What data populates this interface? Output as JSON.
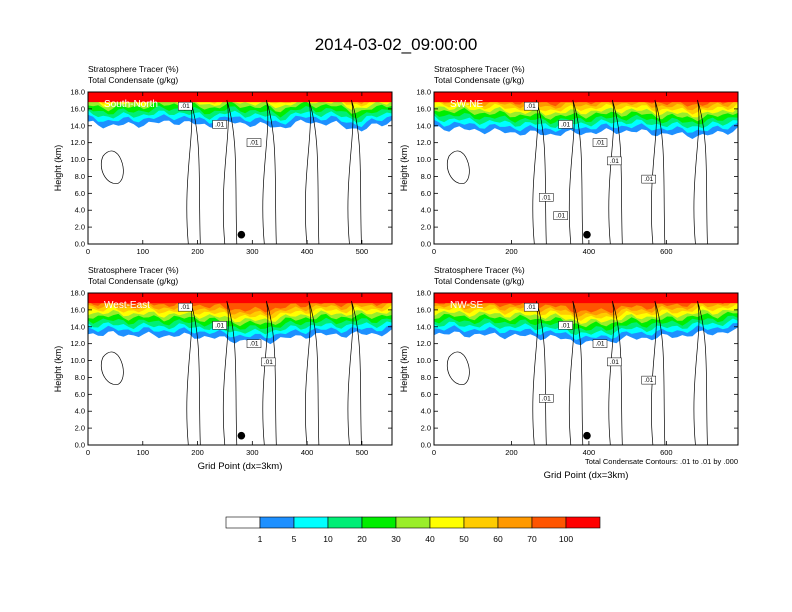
{
  "title": "2014-03-02_09:00:00",
  "colors": {
    "fill_levels": [
      "#ffffff",
      "#1e90ff",
      "#00ffff",
      "#00ee76",
      "#00ee00",
      "#9aee2a",
      "#ffff00",
      "#ffcc00",
      "#ff9900",
      "#ff5500",
      "#ff0000"
    ],
    "contour": "#000000"
  },
  "colorbar": {
    "labels": [
      "1",
      "5",
      "10",
      "20",
      "30",
      "40",
      "50",
      "60",
      "70",
      "100"
    ]
  },
  "contour_note": "Total Condensate Contours: .01 to .01 by .000",
  "chart_data": [
    {
      "type": "heatmap",
      "name": "South-North",
      "subtitle_1": "Stratosphere Tracer   (%)",
      "subtitle_2": "Total Condensate   (g/kg)",
      "ylabel": "Height (km)",
      "xlabel": "",
      "xlim": [
        0,
        555
      ],
      "ylim": [
        0,
        18
      ],
      "xticks": [
        "0",
        "100",
        "200",
        "300",
        "400",
        "500"
      ],
      "xtick_values": [
        0,
        100,
        200,
        300,
        400,
        500
      ],
      "yticks": [
        "0.0",
        "2.0",
        "4.0",
        "6.0",
        "8.0",
        "10.0",
        "12.0",
        "14.0",
        "16.0",
        "18.0"
      ],
      "marker_x": 280,
      "marker_y": 1.1,
      "contour_labels": [
        ".01",
        ".01",
        ".01"
      ],
      "profile_bottom": [
        [
          0,
          14.3
        ],
        [
          40,
          14.0
        ],
        [
          100,
          14.2
        ],
        [
          160,
          14.5
        ],
        [
          220,
          14.0
        ],
        [
          260,
          14.4
        ],
        [
          300,
          14.2
        ],
        [
          350,
          13.8
        ],
        [
          400,
          14.5
        ],
        [
          450,
          14.2
        ],
        [
          500,
          13.5
        ],
        [
          555,
          14.6
        ]
      ]
    },
    {
      "type": "heatmap",
      "name": "SW-NE",
      "subtitle_1": "Stratosphere Tracer   (%)",
      "subtitle_2": "Total Condensate   (g/kg)",
      "ylabel": "Height (km)",
      "xlabel": "",
      "xlim": [
        0,
        785
      ],
      "ylim": [
        0,
        18
      ],
      "xticks": [
        "0",
        "200",
        "400",
        "600"
      ],
      "xtick_values": [
        0,
        200,
        400,
        600
      ],
      "yticks": [
        "0.0",
        "2.0",
        "4.0",
        "6.0",
        "8.0",
        "10.0",
        "12.0",
        "14.0",
        "16.0",
        "18.0"
      ],
      "marker_x": 395,
      "marker_y": 1.1,
      "contour_labels": [
        ".01",
        ".01",
        ".01",
        ".01",
        ".01",
        ".01",
        ".01"
      ],
      "profile_bottom": [
        [
          0,
          13.8
        ],
        [
          100,
          13.5
        ],
        [
          200,
          13.2
        ],
        [
          300,
          13.0
        ],
        [
          400,
          13.2
        ],
        [
          500,
          13.4
        ],
        [
          600,
          13.0
        ],
        [
          700,
          12.8
        ],
        [
          785,
          13.6
        ]
      ]
    },
    {
      "type": "heatmap",
      "name": "West-East",
      "subtitle_1": "Stratosphere Tracer   (%)",
      "subtitle_2": "Total Condensate   (g/kg)",
      "ylabel": "Height (km)",
      "xlabel": "Grid Point (dx=3km)",
      "xlim": [
        0,
        555
      ],
      "ylim": [
        0,
        18
      ],
      "xticks": [
        "0",
        "100",
        "200",
        "300",
        "400",
        "500"
      ],
      "xtick_values": [
        0,
        100,
        200,
        300,
        400,
        500
      ],
      "yticks": [
        "0.0",
        "2.0",
        "4.0",
        "6.0",
        "8.0",
        "10.0",
        "12.0",
        "14.0",
        "16.0",
        "18.0"
      ],
      "marker_x": 280,
      "marker_y": 1.1,
      "contour_labels": [
        ".01",
        ".01",
        ".01",
        ".01"
      ],
      "profile_bottom": [
        [
          0,
          13.2
        ],
        [
          100,
          13.0
        ],
        [
          200,
          12.9
        ],
        [
          300,
          12.2
        ],
        [
          350,
          12.5
        ],
        [
          400,
          13.0
        ],
        [
          500,
          13.1
        ],
        [
          555,
          13.3
        ]
      ]
    },
    {
      "type": "heatmap",
      "name": "NW-SE",
      "subtitle_1": "Stratosphere Tracer   (%)",
      "subtitle_2": "Total Condensate   (g/kg)",
      "ylabel": "Height (km)",
      "xlabel": "Grid Point (dx=3km)",
      "xlim": [
        0,
        785
      ],
      "ylim": [
        0,
        18
      ],
      "xticks": [
        "0",
        "200",
        "400",
        "600"
      ],
      "xtick_values": [
        0,
        200,
        400,
        600
      ],
      "yticks": [
        "0.0",
        "2.0",
        "4.0",
        "6.0",
        "8.0",
        "10.0",
        "12.0",
        "14.0",
        "16.0",
        "18.0"
      ],
      "marker_x": 395,
      "marker_y": 1.1,
      "contour_labels": [
        ".01",
        ".01",
        ".01",
        ".01",
        ".01",
        ".01"
      ],
      "profile_bottom": [
        [
          0,
          13.2
        ],
        [
          150,
          13.0
        ],
        [
          300,
          12.8
        ],
        [
          400,
          12.0
        ],
        [
          500,
          12.6
        ],
        [
          600,
          12.8
        ],
        [
          700,
          13.2
        ],
        [
          785,
          13.5
        ]
      ]
    }
  ]
}
